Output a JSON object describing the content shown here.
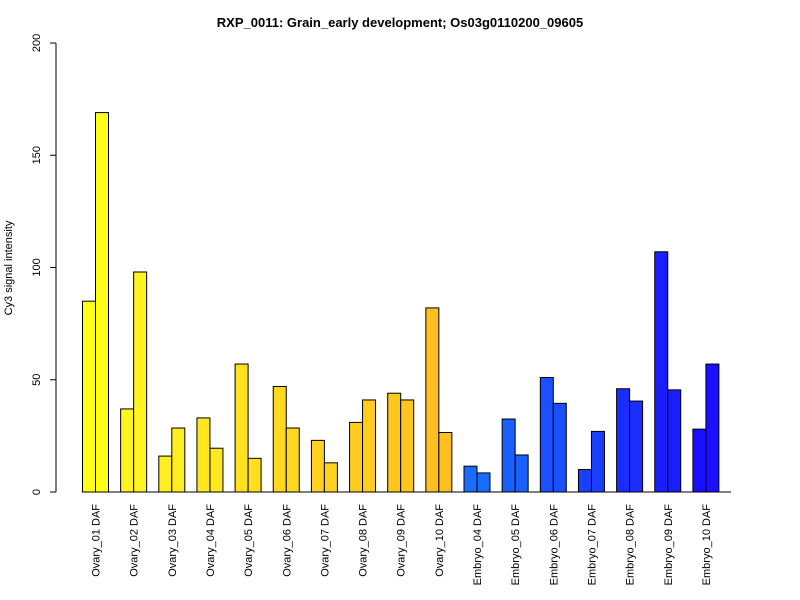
{
  "chart_data": {
    "type": "bar",
    "title": "RXP_0011: Grain_early development; Os03g0110200_09605",
    "ylabel": "Cy3 signal intensity",
    "xlabel": "",
    "ylim": [
      0,
      200
    ],
    "yticks": [
      0,
      50,
      100,
      150,
      200
    ],
    "grid": false,
    "categories": [
      "Ovary_01 DAF",
      "Ovary_02 DAF",
      "Ovary_03 DAF",
      "Ovary_04 DAF",
      "Ovary_05 DAF",
      "Ovary_06 DAF",
      "Ovary_07 DAF",
      "Ovary_08 DAF",
      "Ovary_09 DAF",
      "Ovary_10 DAF",
      "Embryo_04 DAF",
      "Embryo_05 DAF",
      "Embryo_06 DAF",
      "Embryo_07 DAF",
      "Embryo_08 DAF",
      "Embryo_09 DAF",
      "Embryo_10 DAF"
    ],
    "colors": [
      "#ffff1a",
      "#fff41f",
      "#ffee1f",
      "#ffe81f",
      "#ffe01f",
      "#ffd81f",
      "#ffd21f",
      "#ffcc1f",
      "#ffc61f",
      "#ffc01f",
      "#1a6cff",
      "#1a60ff",
      "#1a50ff",
      "#1a40ff",
      "#1a2eff",
      "#1a1eff",
      "#1a10ff"
    ],
    "series": [
      {
        "values": [
          85,
          37,
          16,
          33,
          57,
          47,
          23,
          31,
          44,
          82,
          11.5,
          32.5,
          51,
          10,
          46,
          107,
          28
        ]
      },
      {
        "values": [
          169,
          98,
          28.5,
          19.5,
          15,
          28.5,
          13,
          41,
          41,
          26.5,
          8.5,
          16.5,
          39.5,
          27,
          40.5,
          45.5,
          57
        ]
      }
    ]
  }
}
